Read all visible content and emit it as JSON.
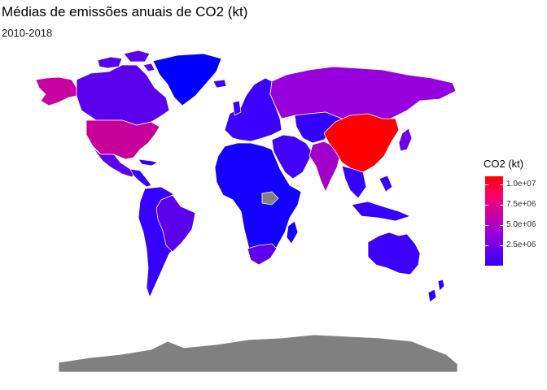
{
  "title": "Médias de emissões anuais de CO2 (kt)",
  "subtitle": "2010-2018",
  "legend": {
    "title": "CO2 (kt)",
    "ticks": [
      "1.0e+07",
      "7.5e+06",
      "5.0e+06",
      "2.5e+06"
    ],
    "tick_values": [
      10000000,
      7500000,
      5000000,
      2500000
    ],
    "scale_min": 0,
    "scale_max": 11000000,
    "colors": {
      "low": "#3300ff",
      "mid": "#9700dd",
      "high": "#ff0000",
      "na": "#808080",
      "border": "#ffffff"
    }
  },
  "regions": [
    {
      "name": "Greenland",
      "fill": "#0000ff"
    },
    {
      "name": "Alaska",
      "fill": "#c800a0"
    },
    {
      "name": "Canada",
      "fill": "#5a00ec"
    },
    {
      "name": "United States",
      "fill": "#c8009a"
    },
    {
      "name": "Mexico",
      "fill": "#5a00ec"
    },
    {
      "name": "Central America",
      "fill": "#3500ff"
    },
    {
      "name": "South America",
      "fill": "#3500ff"
    },
    {
      "name": "Brazil",
      "fill": "#5a00ec"
    },
    {
      "name": "Europe",
      "fill": "#3a00fc"
    },
    {
      "name": "Russia",
      "fill": "#9700dd"
    },
    {
      "name": "Africa",
      "fill": "#1400ff"
    },
    {
      "name": "South Africa",
      "fill": "#6100ea"
    },
    {
      "name": "Middle East",
      "fill": "#4100fa"
    },
    {
      "name": "Central Asia",
      "fill": "#3300ff"
    },
    {
      "name": "India",
      "fill": "#a000c8"
    },
    {
      "name": "China",
      "fill": "#ff0000"
    },
    {
      "name": "Southeast Asia",
      "fill": "#3500ff"
    },
    {
      "name": "Japan",
      "fill": "#6e00e8"
    },
    {
      "name": "Australia",
      "fill": "#3a00fc"
    },
    {
      "name": "New Zealand",
      "fill": "#2600ff"
    },
    {
      "name": "South Sudan",
      "fill": "#808080"
    },
    {
      "name": "Antarctica",
      "fill": "#808080"
    }
  ]
}
